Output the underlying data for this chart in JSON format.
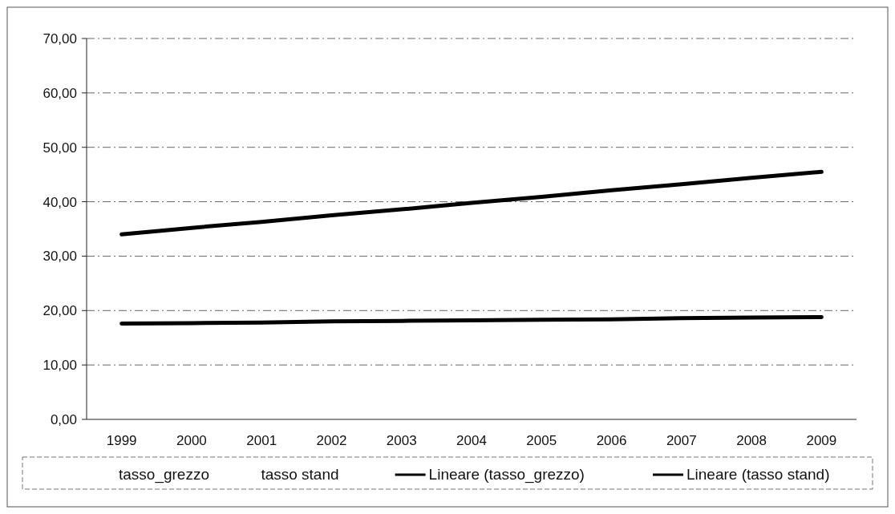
{
  "chart_data": {
    "type": "line",
    "categories": [
      "1999",
      "2000",
      "2001",
      "2002",
      "2003",
      "2004",
      "2005",
      "2006",
      "2007",
      "2008",
      "2009"
    ],
    "series": [
      {
        "name": "tasso_grezzo",
        "values": [
          null,
          null,
          null,
          null,
          null,
          null,
          null,
          null,
          null,
          null,
          null
        ]
      },
      {
        "name": "tasso stand",
        "values": [
          null,
          null,
          null,
          null,
          null,
          null,
          null,
          null,
          null,
          null,
          null
        ]
      },
      {
        "name": "Lineare (tasso_grezzo)",
        "color": "#000000",
        "values": [
          34.0,
          35.2,
          36.3,
          37.5,
          38.6,
          39.8,
          40.9,
          42.1,
          43.2,
          44.4,
          45.5
        ]
      },
      {
        "name": "Lineare (tasso stand)",
        "color": "#000000",
        "values": [
          17.6,
          17.7,
          17.8,
          18.0,
          18.1,
          18.2,
          18.3,
          18.4,
          18.6,
          18.7,
          18.8
        ]
      }
    ],
    "ylim": [
      0,
      70
    ],
    "yticks": [
      {
        "value": 0,
        "label": "0,00"
      },
      {
        "value": 10,
        "label": "10,00"
      },
      {
        "value": 20,
        "label": "20,00"
      },
      {
        "value": 30,
        "label": "30,00"
      },
      {
        "value": 40,
        "label": "40,00"
      },
      {
        "value": 50,
        "label": "50,00"
      },
      {
        "value": 60,
        "label": "60,00"
      },
      {
        "value": 70,
        "label": "70,00"
      }
    ],
    "grid": "y",
    "legend": "bottom",
    "marker": "none",
    "line_style": "solid"
  }
}
